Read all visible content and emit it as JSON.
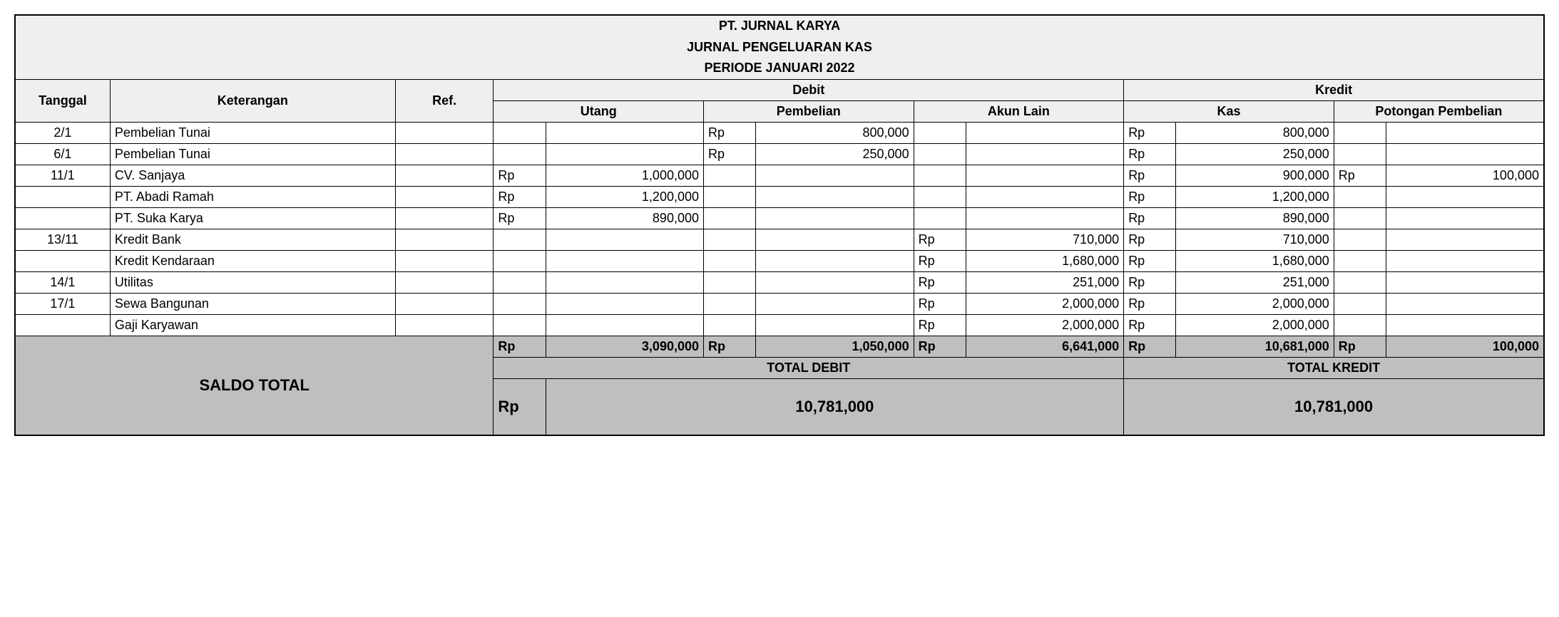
{
  "header": {
    "company": "PT. JURNAL KARYA",
    "journal_title": "JURNAL PENGELUARAN KAS",
    "period": "PERIODE JANUARI 2022"
  },
  "columns": {
    "tanggal": "Tanggal",
    "keterangan": "Keterangan",
    "ref": "Ref.",
    "debit": "Debit",
    "kredit": "Kredit",
    "utang": "Utang",
    "pembelian": "Pembelian",
    "akun_lain": "Akun Lain",
    "kas": "Kas",
    "potongan": "Potongan Pembelian"
  },
  "currency": "Rp",
  "rows": [
    {
      "tanggal": "2/1",
      "keterangan": "Pembelian Tunai",
      "ref": "",
      "utang": "",
      "pembelian": "800,000",
      "akun_lain": "",
      "kas": "800,000",
      "potongan": ""
    },
    {
      "tanggal": "6/1",
      "keterangan": "Pembelian Tunai",
      "ref": "",
      "utang": "",
      "pembelian": "250,000",
      "akun_lain": "",
      "kas": "250,000",
      "potongan": ""
    },
    {
      "tanggal": "11/1",
      "keterangan": "CV. Sanjaya",
      "ref": "",
      "utang": "1,000,000",
      "pembelian": "",
      "akun_lain": "",
      "kas": "900,000",
      "potongan": "100,000"
    },
    {
      "tanggal": "",
      "keterangan": "PT. Abadi Ramah",
      "ref": "",
      "utang": "1,200,000",
      "pembelian": "",
      "akun_lain": "",
      "kas": "1,200,000",
      "potongan": ""
    },
    {
      "tanggal": "",
      "keterangan": "PT. Suka Karya",
      "ref": "",
      "utang": "890,000",
      "pembelian": "",
      "akun_lain": "",
      "kas": "890,000",
      "potongan": ""
    },
    {
      "tanggal": "13/11",
      "keterangan": "Kredit Bank",
      "ref": "",
      "utang": "",
      "pembelian": "",
      "akun_lain": "710,000",
      "kas": "710,000",
      "potongan": ""
    },
    {
      "tanggal": "",
      "keterangan": "Kredit Kendaraan",
      "ref": "",
      "utang": "",
      "pembelian": "",
      "akun_lain": "1,680,000",
      "kas": "1,680,000",
      "potongan": ""
    },
    {
      "tanggal": "14/1",
      "keterangan": "Utilitas",
      "ref": "",
      "utang": "",
      "pembelian": "",
      "akun_lain": "251,000",
      "kas": "251,000",
      "potongan": ""
    },
    {
      "tanggal": "17/1",
      "keterangan": "Sewa Bangunan",
      "ref": "",
      "utang": "",
      "pembelian": "",
      "akun_lain": "2,000,000",
      "kas": "2,000,000",
      "potongan": ""
    },
    {
      "tanggal": "",
      "keterangan": "Gaji Karyawan",
      "ref": "",
      "utang": "",
      "pembelian": "",
      "akun_lain": "2,000,000",
      "kas": "2,000,000",
      "potongan": ""
    }
  ],
  "subtotals": {
    "utang": "3,090,000",
    "pembelian": "1,050,000",
    "akun_lain": "6,641,000",
    "kas": "10,681,000",
    "potongan": "100,000"
  },
  "totals": {
    "saldo_label": "SALDO TOTAL",
    "total_debit_label": "TOTAL DEBIT",
    "total_kredit_label": "TOTAL KREDIT",
    "debit_curr": "Rp",
    "debit_value": "10,781,000",
    "kredit_value": "10,781,000"
  },
  "style": {
    "header_bg": "#efefef",
    "subtotal_bg": "#bfbfbf",
    "border_color": "#000000",
    "text_color": "#000000",
    "font_family": "Arial",
    "title_fontsize": 18,
    "body_fontsize": 18,
    "saldo_fontsize": 22
  }
}
